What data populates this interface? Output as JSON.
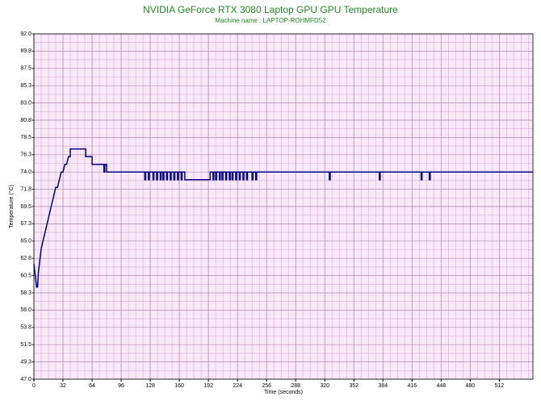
{
  "chart_data": {
    "type": "line",
    "title": "NVIDIA GeForce RTX 3080 Laptop GPU GPU Temperature",
    "subtitle": "Machine name : LAPTOP-ROHMFD52",
    "x_label": "Time (seconds)",
    "y_label": "Temperature (°C)",
    "xlim": [
      0,
      549
    ],
    "ylim": [
      47,
      92
    ],
    "xticks": [
      0,
      32,
      64,
      96,
      128,
      160,
      192,
      224,
      256,
      288,
      320,
      352,
      384,
      416,
      448,
      480,
      512
    ],
    "yticks": [
      {
        "value": 92,
        "label": "92.0"
      },
      {
        "value": 89.75,
        "label": "89.8"
      },
      {
        "value": 87.5,
        "label": "87.5"
      },
      {
        "value": 85.25,
        "label": "85.3"
      },
      {
        "value": 83,
        "label": "83.0"
      },
      {
        "value": 80.75,
        "label": "80.8"
      },
      {
        "value": 78.5,
        "label": "78.5"
      },
      {
        "value": 76.25,
        "label": "76.3"
      },
      {
        "value": 74,
        "label": "74.0"
      },
      {
        "value": 71.75,
        "label": "71.8"
      },
      {
        "value": 69.5,
        "label": "69.5"
      },
      {
        "value": 67.25,
        "label": "67.3"
      },
      {
        "value": 65,
        "label": "65.0"
      },
      {
        "value": 62.75,
        "label": "62.8"
      },
      {
        "value": 60.5,
        "label": "60.5"
      },
      {
        "value": 58.25,
        "label": "58.3"
      },
      {
        "value": 56,
        "label": "56.0"
      },
      {
        "value": 53.75,
        "label": "53.8"
      },
      {
        "value": 51.5,
        "label": "51.5"
      },
      {
        "value": 49.25,
        "label": "49.3"
      },
      {
        "value": 47,
        "label": "47.0"
      }
    ],
    "grid": true,
    "series": [
      {
        "name": "GPU Temperature",
        "color": "#00008b",
        "x": [
          0,
          1,
          2,
          3,
          4,
          5,
          6,
          7,
          8,
          10,
          12,
          14,
          16,
          18,
          20,
          22,
          24,
          26,
          28,
          30,
          32,
          34,
          36,
          38,
          40,
          40,
          57,
          57,
          64,
          64,
          77,
          77,
          78,
          78,
          80,
          80,
          122,
          122,
          123,
          123,
          126,
          126,
          127,
          127,
          131,
          131,
          132,
          132,
          135,
          135,
          136,
          136,
          139,
          139,
          140,
          140,
          142,
          142,
          143,
          143,
          146,
          146,
          147,
          147,
          150,
          150,
          151,
          151,
          154,
          154,
          155,
          155,
          158,
          158,
          159,
          159,
          162,
          162,
          163,
          163,
          166,
          166,
          194,
          194,
          197,
          197,
          198,
          198,
          200,
          200,
          201,
          201,
          204,
          204,
          205,
          205,
          207,
          207,
          208,
          208,
          211,
          211,
          212,
          212,
          215,
          215,
          216,
          216,
          218,
          218,
          219,
          219,
          222,
          222,
          223,
          223,
          226,
          226,
          227,
          227,
          230,
          230,
          231,
          231,
          234,
          234,
          235,
          235,
          240,
          240,
          241,
          241,
          244,
          244,
          245,
          245,
          325,
          325,
          326,
          326,
          380,
          380,
          381,
          381,
          426,
          426,
          427,
          427,
          435,
          435,
          436,
          436,
          549
        ],
        "values": [
          62,
          61,
          60,
          59,
          59,
          61,
          62,
          63,
          64,
          65,
          66,
          67,
          68,
          69,
          70,
          71,
          72,
          72,
          73,
          74,
          74,
          75,
          75,
          76,
          76,
          77,
          77,
          76,
          76,
          75,
          75,
          74,
          74,
          75,
          75,
          74,
          74,
          73,
          73,
          74,
          74,
          73,
          73,
          74,
          74,
          73,
          73,
          74,
          74,
          73,
          73,
          74,
          74,
          73,
          73,
          74,
          74,
          73,
          73,
          74,
          74,
          73,
          73,
          74,
          74,
          73,
          73,
          74,
          74,
          73,
          73,
          74,
          74,
          73,
          73,
          74,
          74,
          73,
          73,
          74,
          74,
          73,
          73,
          74,
          74,
          73,
          73,
          74,
          74,
          73,
          73,
          74,
          74,
          73,
          73,
          74,
          74,
          73,
          73,
          74,
          74,
          73,
          73,
          74,
          74,
          73,
          73,
          74,
          74,
          73,
          73,
          74,
          74,
          73,
          73,
          74,
          74,
          73,
          73,
          74,
          74,
          73,
          73,
          74,
          74,
          73,
          73,
          74,
          74,
          73,
          73,
          74,
          74,
          73,
          73,
          74,
          74,
          73,
          73,
          74,
          74,
          73,
          73,
          74,
          74,
          73,
          73,
          74,
          74,
          73,
          73,
          74,
          74
        ]
      }
    ]
  }
}
